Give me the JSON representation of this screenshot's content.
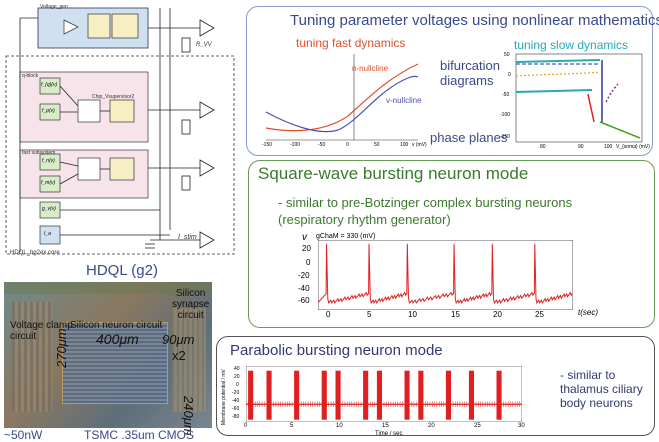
{
  "circuit": {
    "caption": "HDQL (g2)",
    "bottom_label": "HDQL_bg2ex.core",
    "stim_label": "I_stim",
    "blocks": {
      "top": "Voltage_gen",
      "slow": "q-block",
      "fast": "fast subsystem",
      "chip_label": "Chip_Vsupervisor2"
    },
    "functions": [
      "f_{q}(v)",
      "f_p(v)",
      "f_n(v)",
      "f_m(v)",
      "g_v(v)",
      "I_a"
    ],
    "rvr": "R_VV"
  },
  "chip": {
    "labels": {
      "voltage_clamp": "Voltage clamp\ncircuit",
      "silicon_neuron": "Silicon neuron circuit",
      "silicon_synapse": "Silicon\nsynapse\ncircuit",
      "dim_400": "400μm",
      "dim_90": "90μm",
      "x2": "x2",
      "dim_270": "270μm",
      "dim_240": "240μm"
    },
    "power": "~50nW",
    "process": "TSMC .35um CMOS"
  },
  "tuning": {
    "title": "Tuning parameter voltages using nonlinear mathematics",
    "fast_title": "tuning fast dynamics",
    "slow_title": "tuning slow dynamics",
    "bifurcation": "bifurcation\ndiagrams",
    "phase_planes": "phase planes",
    "n_nullcline": "n-nullcline",
    "v_nullcline": "v-nullcline",
    "fast_xticks": [
      "-150",
      "-100",
      "-50",
      "0",
      "50",
      "100"
    ],
    "fast_xlabel": "v (mV)",
    "slow_xticks": [
      "80",
      "90",
      "100"
    ],
    "slow_yticks": [
      "50",
      "0",
      "-50",
      "-100",
      "-150"
    ],
    "slow_xlabel": "V_{soma} (mV)"
  },
  "square": {
    "title": "Square-wave bursting neuron mode",
    "desc": "- similar to pre-Botzinger complex bursting neurons\n(respiratory rhythm generator)",
    "ylabel": "v",
    "param": "gChaM = 330 (mV)",
    "xlabel": "t(sec)",
    "yticks": [
      "20",
      "0",
      "-20",
      "-40",
      "-60"
    ],
    "xticks": [
      "0",
      "5",
      "10",
      "15",
      "20",
      "25"
    ]
  },
  "parabolic": {
    "title": "Parabolic bursting neuron mode",
    "desc": "- similar to\nthalamus ciliary\nbody neurons",
    "ylabel": "Membrane potential / mV",
    "xlabel": "Time / sec",
    "yticks": [
      "40",
      "20",
      "0",
      "-20",
      "-40",
      "-60",
      "-80"
    ],
    "xticks": [
      "0",
      "5",
      "10",
      "15",
      "20",
      "25",
      "30"
    ]
  },
  "chart_data": [
    {
      "type": "line",
      "title": "Square-wave bursting neuron mode",
      "xlabel": "t(sec)",
      "ylabel": "v (mV)",
      "xlim": [
        0,
        30
      ],
      "ylim": [
        -70,
        25
      ],
      "series": [
        {
          "bursts_at_sec": [
            1,
            6,
            10.5,
            16,
            20.5,
            25.5
          ],
          "spike_peak_mv": 20,
          "baseline_mv": [
            -60,
            -48
          ]
        }
      ]
    },
    {
      "type": "line",
      "title": "Parabolic bursting neuron mode",
      "xlabel": "Time / sec",
      "ylabel": "Membrane potential / mV",
      "xlim": [
        0,
        30
      ],
      "ylim": [
        -80,
        40
      ],
      "series": [
        {
          "bursts_at_sec": [
            0.5,
            2.5,
            5.5,
            8.5,
            10,
            13,
            14.5,
            17.5,
            19,
            22,
            24.5,
            27.5
          ],
          "spike_peak_mv": 30,
          "baseline_mv": -42
        }
      ]
    }
  ],
  "colors": {
    "frame": "#6a9a5a",
    "trace": "#e02020",
    "title_blue": "#3a4a8a",
    "title_green": "#3b7a2e",
    "orange": "#e0502a",
    "teal": "#27a9b6"
  }
}
